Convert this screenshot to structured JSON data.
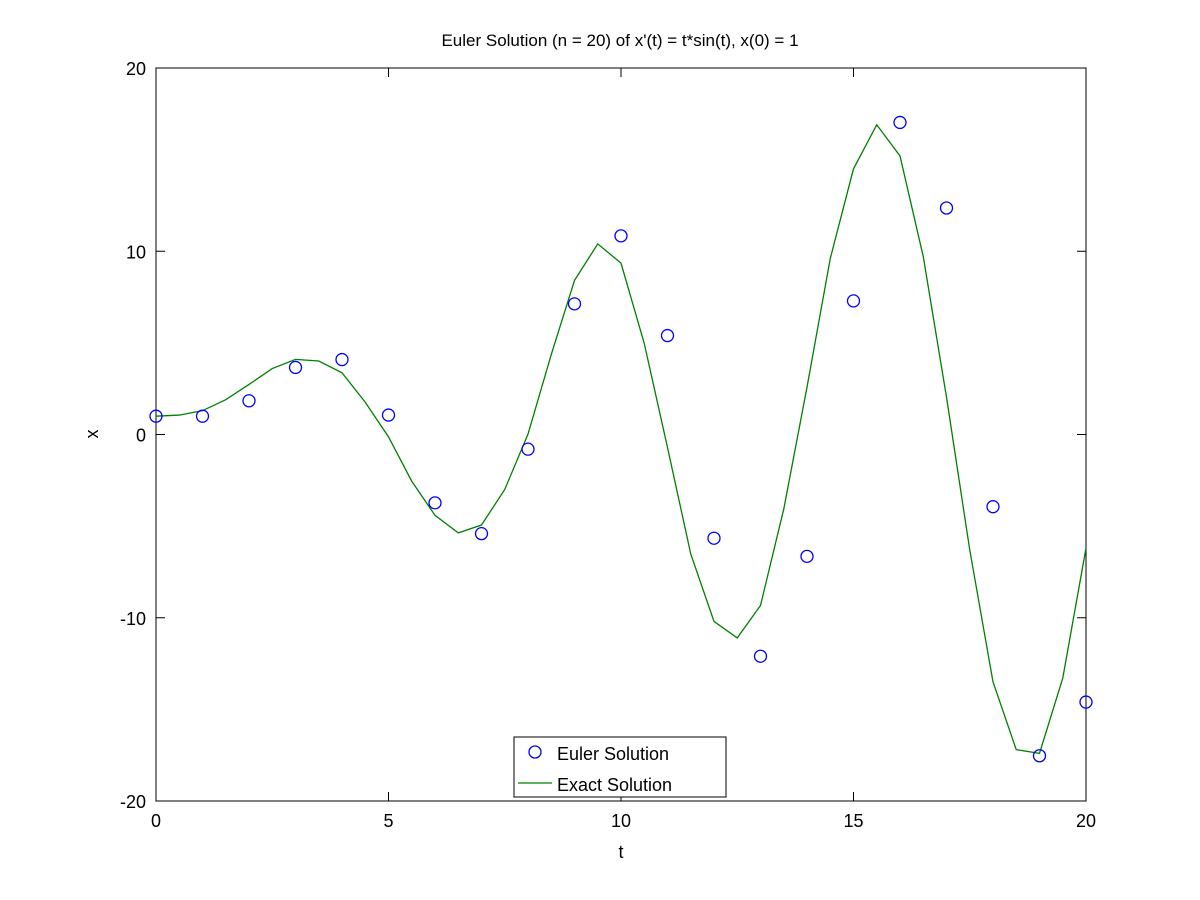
{
  "chart_data": {
    "type": "line",
    "title": "Euler Solution (n = 20) of x'(t) = t*sin(t), x(0) = 1",
    "xlabel": "t",
    "ylabel": "x",
    "xlim": [
      0,
      20
    ],
    "ylim": [
      -20,
      20
    ],
    "xticks": [
      0,
      5,
      10,
      15,
      20
    ],
    "yticks": [
      -20,
      -10,
      0,
      10,
      20
    ],
    "grid": false,
    "legend_position": "bottom-center",
    "series": [
      {
        "name": "Euler Solution",
        "kind": "scatter",
        "marker": "circle",
        "color": "#0000ff",
        "x": [
          0,
          1,
          2,
          3,
          4,
          5,
          6,
          7,
          8,
          9,
          10,
          11,
          12,
          13,
          14,
          15,
          16,
          17,
          18,
          19,
          20
        ],
        "y": [
          1.0,
          1.0,
          1.84,
          3.66,
          4.09,
          1.06,
          -3.73,
          -5.41,
          -0.8,
          7.13,
          10.84,
          5.4,
          -5.66,
          -12.1,
          -6.65,
          7.29,
          17.03,
          12.36,
          -3.94,
          -17.53,
          -14.6
        ]
      },
      {
        "name": "Exact Solution",
        "kind": "line",
        "color": "#008000",
        "x": [
          0,
          0.5,
          1,
          1.5,
          2,
          2.5,
          3,
          3.5,
          4,
          4.5,
          5,
          5.5,
          6,
          6.5,
          7,
          7.5,
          8,
          8.5,
          9,
          9.5,
          10,
          10.5,
          11,
          11.5,
          12,
          12.5,
          13,
          13.5,
          14,
          14.5,
          15,
          15.5,
          16,
          16.5,
          17,
          17.5,
          18,
          18.5,
          19,
          19.5,
          20
        ],
        "y": [
          1.0,
          1.06,
          1.3,
          1.9,
          2.73,
          3.6,
          4.1,
          4.01,
          3.37,
          1.76,
          -0.13,
          -2.55,
          -4.41,
          -5.37,
          -4.94,
          -3.0,
          0.02,
          4.36,
          8.41,
          10.4,
          9.35,
          4.97,
          -0.71,
          -6.52,
          -10.2,
          -11.1,
          -9.33,
          -4.07,
          2.58,
          9.6,
          14.5,
          16.9,
          15.2,
          9.71,
          2.04,
          -6.3,
          -13.5,
          -17.2,
          -17.4,
          -13.3,
          -6.2
        ]
      }
    ]
  }
}
